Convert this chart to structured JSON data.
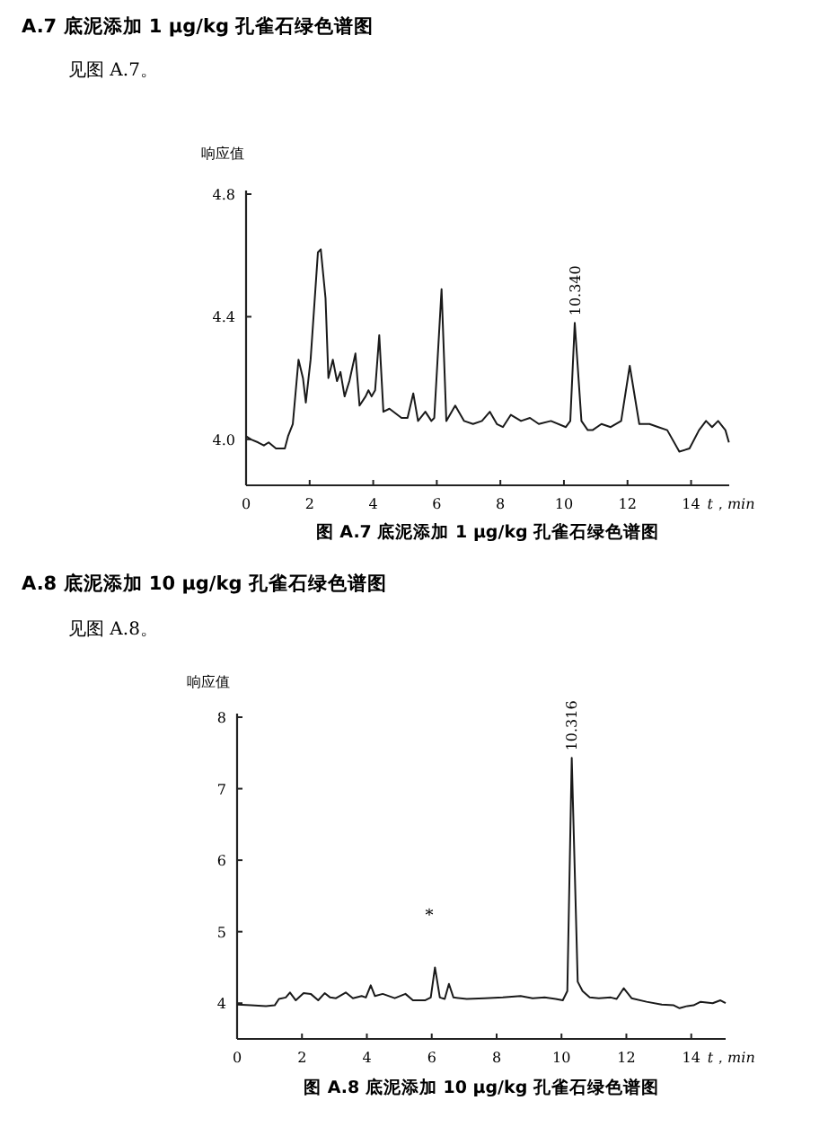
{
  "chart_data": [
    {
      "type": "line",
      "title": "A.7  底泥添加 1 μg/kg 孔雀石绿色谱图",
      "subtitle": "见图 A.7。",
      "ylabel": "响应值",
      "xlabel": "t，min",
      "xlim": [
        0,
        15.2
      ],
      "ylim": [
        3.85,
        4.8
      ],
      "xticks": [
        0,
        2,
        4,
        6,
        8,
        10,
        12,
        14
      ],
      "yticks": [
        {
          "value": 4,
          "label": "4.0"
        },
        4.4,
        4.8
      ],
      "annotations": [
        "图 A.7  底泥添加 1 μg/kg 孔雀石绿色谱图",
        {
          "text": "10.340",
          "x": 10.34,
          "y": 4.38
        }
      ],
      "series": [
        {
          "color": "#1a1a1a",
          "x": [
            0,
            0.15,
            0.38,
            0.56,
            0.71,
            0.94,
            1.22,
            1.32,
            1.47,
            1.65,
            1.79,
            1.88,
            2.03,
            2.26,
            2.35,
            2.5,
            2.59,
            2.73,
            2.86,
            2.97,
            3.1,
            3.25,
            3.44,
            3.57,
            3.76,
            3.85,
            3.95,
            4.06,
            4.19,
            4.32,
            4.51,
            4.89,
            5.08,
            5.26,
            5.41,
            5.64,
            5.83,
            5.92,
            6.15,
            6.3,
            6.58,
            6.86,
            7.14,
            7.42,
            7.67,
            7.89,
            8.08,
            8.33,
            8.65,
            8.93,
            9.21,
            9.59,
            10.06,
            10.2,
            10.34,
            10.55,
            10.75,
            10.9,
            11.18,
            11.47,
            11.8,
            12.07,
            12.37,
            12.69,
            12.97,
            13.25,
            13.63,
            13.95,
            14.25,
            14.47,
            14.66,
            14.85,
            15.08,
            15.19
          ],
          "values": [
            4.01,
            4.0,
            3.99,
            3.98,
            3.99,
            3.97,
            3.97,
            4.01,
            4.05,
            4.26,
            4.2,
            4.12,
            4.26,
            4.61,
            4.62,
            4.46,
            4.2,
            4.26,
            4.19,
            4.22,
            4.14,
            4.19,
            4.28,
            4.11,
            4.14,
            4.16,
            4.14,
            4.16,
            4.34,
            4.09,
            4.1,
            4.07,
            4.07,
            4.15,
            4.06,
            4.09,
            4.06,
            4.07,
            4.49,
            4.06,
            4.11,
            4.06,
            4.05,
            4.06,
            4.09,
            4.05,
            4.04,
            4.08,
            4.06,
            4.07,
            4.05,
            4.06,
            4.04,
            4.06,
            4.38,
            4.06,
            4.03,
            4.03,
            4.05,
            4.04,
            4.06,
            4.24,
            4.05,
            4.05,
            4.04,
            4.03,
            3.96,
            3.97,
            4.03,
            4.06,
            4.04,
            4.06,
            4.03,
            3.99
          ]
        }
      ]
    },
    {
      "type": "line",
      "title": "A.8  底泥添加 10 μg/kg 孔雀石绿色谱图",
      "subtitle": "见图 A.8。",
      "ylabel": "响应值",
      "xlabel": "t，min",
      "xlim": [
        0,
        15.06
      ],
      "ylim": [
        3.5,
        8
      ],
      "xticks": [
        0,
        2,
        4,
        6,
        8,
        10,
        12,
        14
      ],
      "yticks": [
        4,
        5,
        6,
        7,
        8
      ],
      "annotations": [
        "图 A.8  底泥添加 10 μg/kg 孔雀石绿色谱图",
        {
          "text": "10.316",
          "x": 10.316,
          "y": 7.43
        },
        "*"
      ],
      "series": [
        {
          "color": "#1a1a1a",
          "x": [
            0,
            0.43,
            0.89,
            1.16,
            1.29,
            1.5,
            1.63,
            1.81,
            2.05,
            2.27,
            2.5,
            2.7,
            2.87,
            3.05,
            3.35,
            3.57,
            3.84,
            3.97,
            4.12,
            4.25,
            4.49,
            4.86,
            5.19,
            5.42,
            5.79,
            5.97,
            6.1,
            6.25,
            6.4,
            6.53,
            6.67,
            7.08,
            7.63,
            8.19,
            8.74,
            9.11,
            9.48,
            9.82,
            10.04,
            10.18,
            10.316,
            10.5,
            10.65,
            10.87,
            11.15,
            11.52,
            11.7,
            11.92,
            12.16,
            12.62,
            13.09,
            13.46,
            13.64,
            13.88,
            14.07,
            14.29,
            14.66,
            14.9,
            15.06
          ],
          "values": [
            3.98,
            3.97,
            3.96,
            3.97,
            4.06,
            4.08,
            4.15,
            4.04,
            4.14,
            4.13,
            4.04,
            4.14,
            4.08,
            4.07,
            4.15,
            4.07,
            4.1,
            4.08,
            4.25,
            4.1,
            4.13,
            4.07,
            4.13,
            4.04,
            4.04,
            4.08,
            4.5,
            4.08,
            4.06,
            4.27,
            4.08,
            4.06,
            4.07,
            4.08,
            4.1,
            4.07,
            4.08,
            4.06,
            4.04,
            4.17,
            7.43,
            4.3,
            4.17,
            4.08,
            4.07,
            4.08,
            4.06,
            4.21,
            4.07,
            4.02,
            3.98,
            3.97,
            3.93,
            3.96,
            3.97,
            4.02,
            4.0,
            4.04,
            4.0
          ]
        }
      ]
    }
  ]
}
